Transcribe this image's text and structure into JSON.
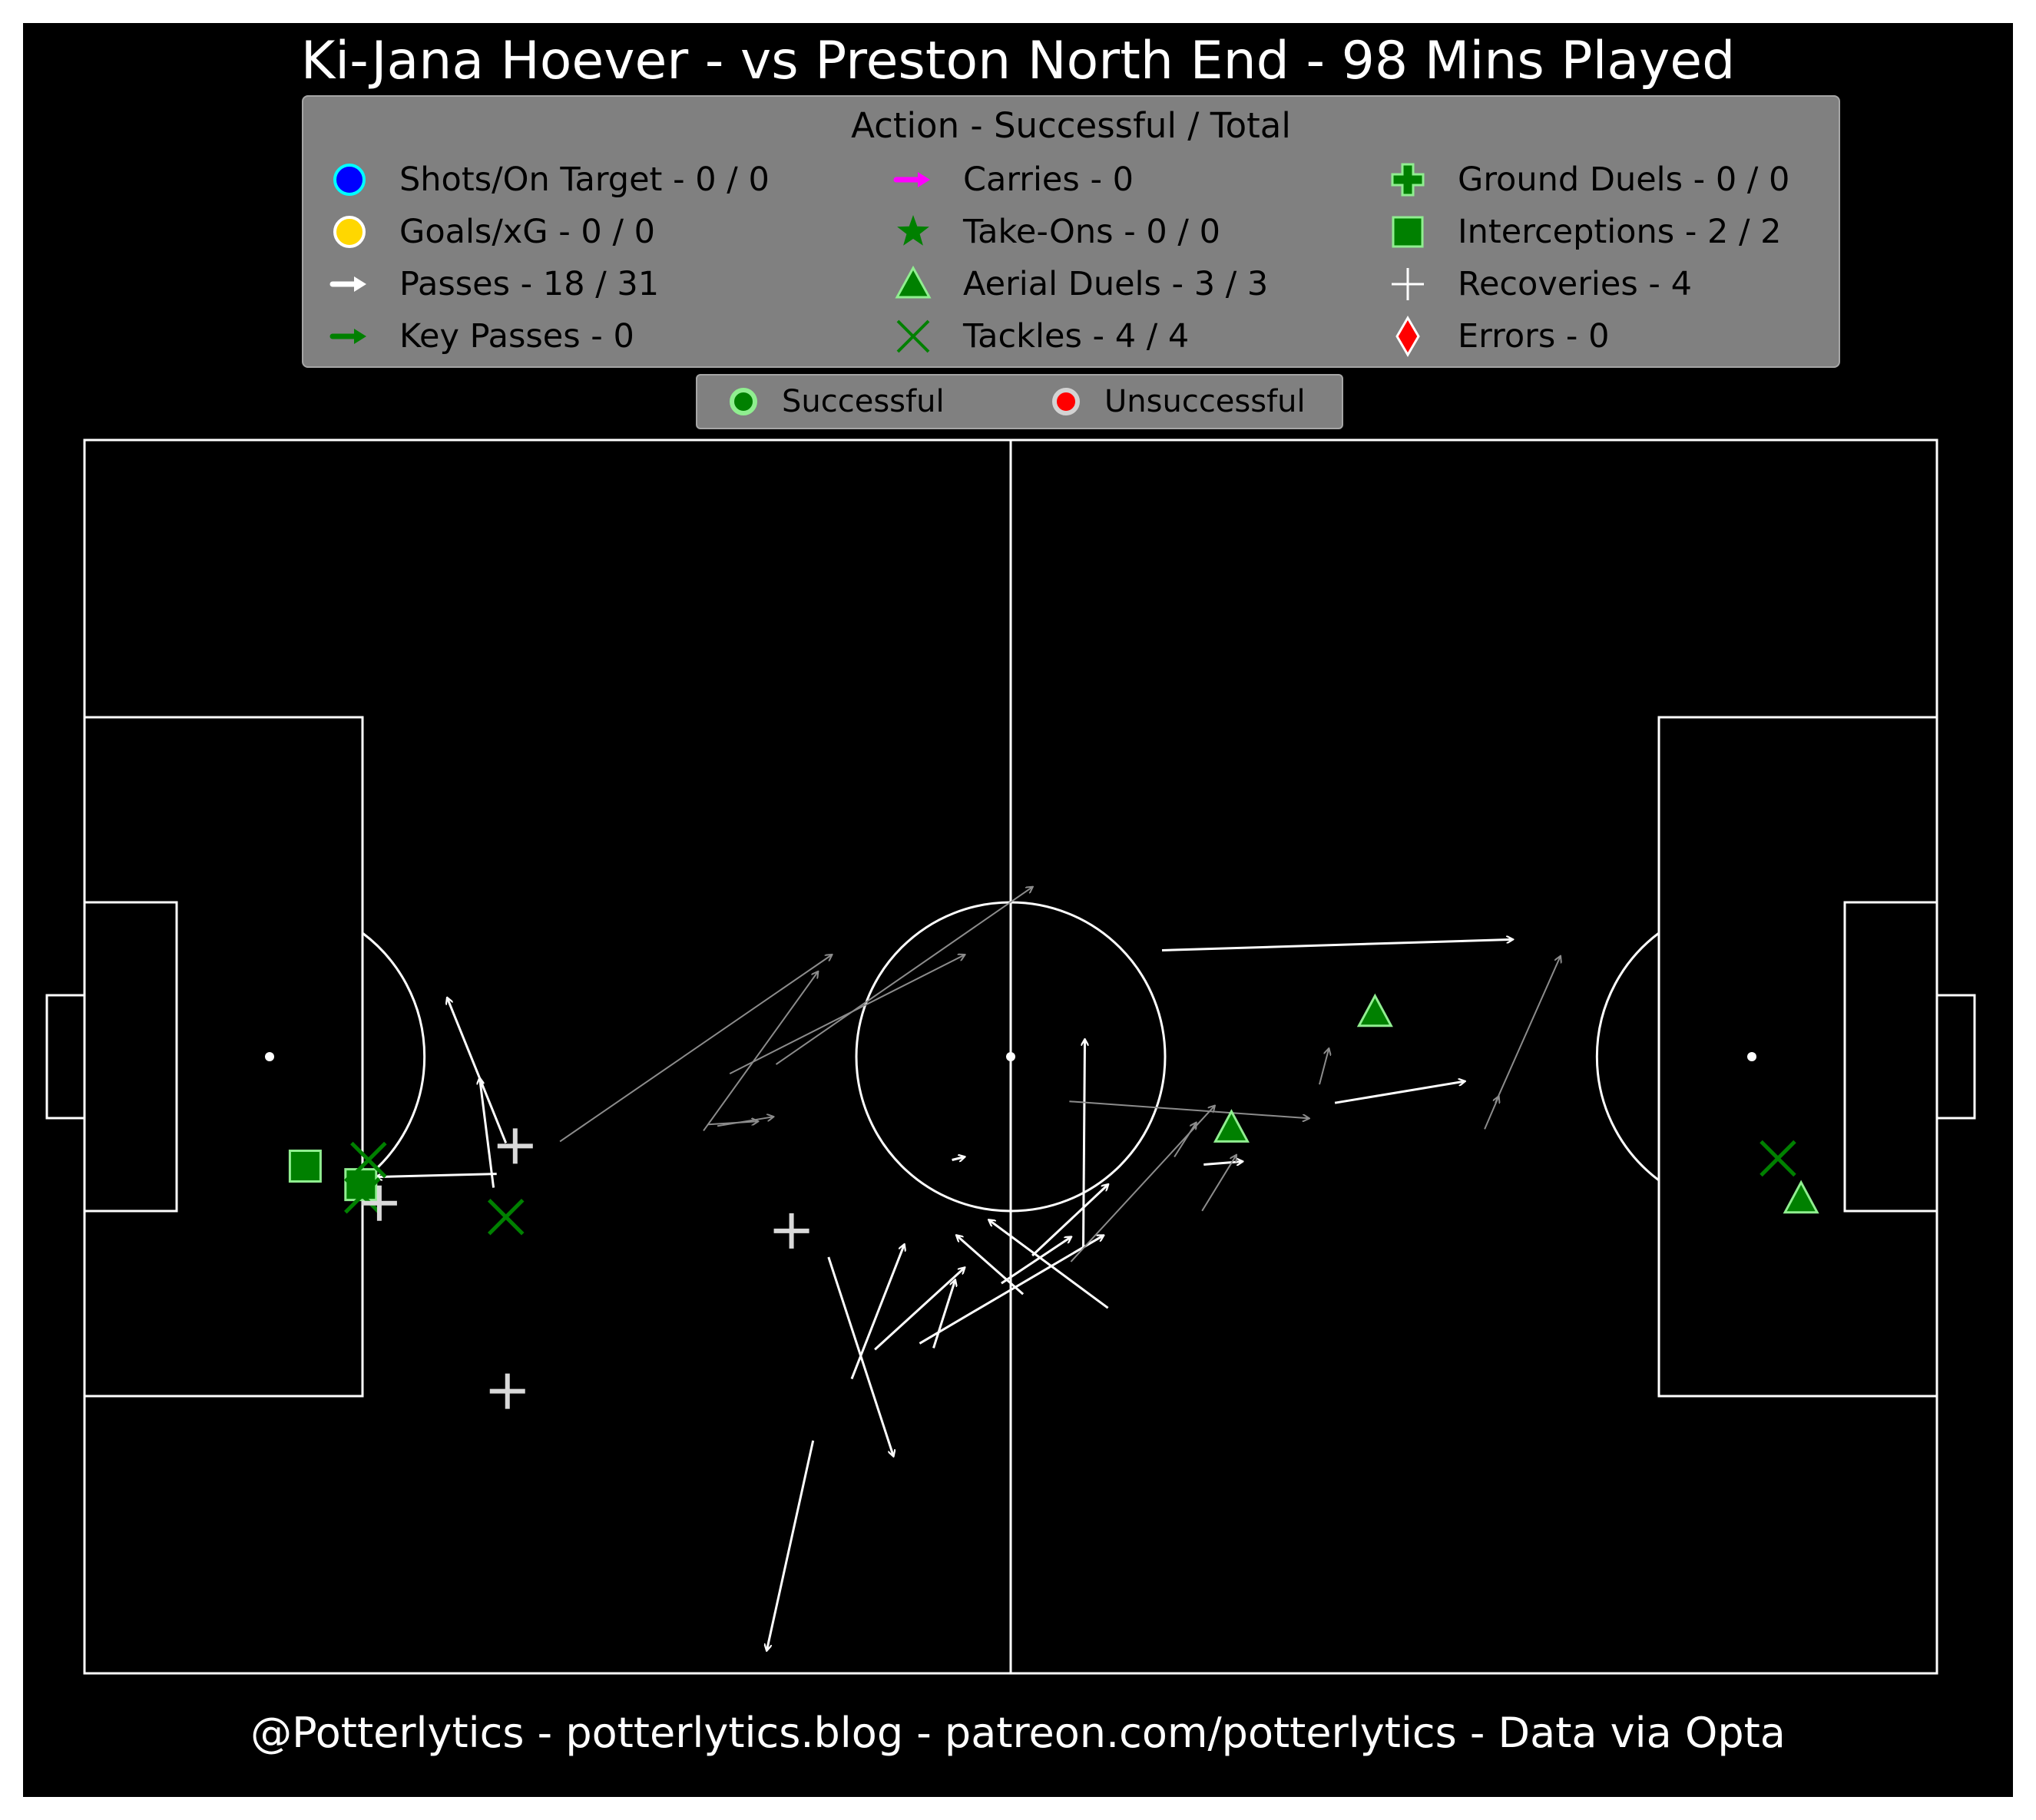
{
  "title": "Ki-Jana Hoever - vs Preston North End - 98 Mins Played",
  "footer": "@Potterlytics - potterlytics.blog - patreon.com/potterlytics - Data via Opta",
  "legend": {
    "title": "Action - Successful / Total",
    "items": [
      {
        "label": "Shots/On Target - 0 / 0",
        "icon": "circle",
        "color": "#0000ff",
        "edge": "#00ffff"
      },
      {
        "label": "Goals/xG - 0 / 0",
        "icon": "circle",
        "color": "#ffd700",
        "edge": "#ffffff"
      },
      {
        "label": "Passes - 18 / 31",
        "icon": "arrow",
        "color": "#ffffff"
      },
      {
        "label": "Key Passes - 0",
        "icon": "arrow",
        "color": "#008000"
      },
      {
        "label": "Carries - 0",
        "icon": "arrow",
        "color": "#ff00ff"
      },
      {
        "label": "Take-Ons - 0 / 0",
        "icon": "star",
        "color": "#008000"
      },
      {
        "label": "Aerial Duels - 3 / 3",
        "icon": "triangle",
        "color": "#008000",
        "edge": "#90ee90"
      },
      {
        "label": "Tackles - 4 / 4",
        "icon": "x",
        "color": "#008000"
      },
      {
        "label": "Ground Duels - 0 / 0",
        "icon": "plus-filled",
        "color": "#008000",
        "edge": "#90ee90"
      },
      {
        "label": "Interceptions - 2 / 2",
        "icon": "square",
        "color": "#008000",
        "edge": "#90ee90"
      },
      {
        "label": "Recoveries - 4",
        "icon": "plus",
        "color": "#ffffff"
      },
      {
        "label": "Errors - 0",
        "icon": "diamond",
        "color": "#ff0000",
        "edge": "#ffffff"
      }
    ]
  },
  "status_legend": [
    {
      "label": "Successful",
      "color": "#008000",
      "edge": "#90ee90"
    },
    {
      "label": "Unsuccessful",
      "color": "#ff0000",
      "edge": "#d3d3d3"
    }
  ],
  "colors": {
    "background": "#000000",
    "pitch_lines": "#ffffff",
    "pass_success": "#ffffff",
    "pass_fail": "#8c8c8c",
    "marker_fill": "#008000",
    "marker_edge": "#90ee90",
    "recovery": "#d9d9d9"
  },
  "chart_data": {
    "type": "scatter",
    "pitch": {
      "length": 120,
      "width": 80,
      "orientation": "attacking-right"
    },
    "passes": [
      {
        "x": 47.2,
        "y": 15.1,
        "end_x": 44.2,
        "end_y": 1.5,
        "outcome": "successful"
      },
      {
        "x": 48.2,
        "y": 27.0,
        "end_x": 52.4,
        "end_y": 14.1,
        "outcome": "successful"
      },
      {
        "x": 64.7,
        "y": 27.6,
        "end_x": 64.8,
        "end_y": 41.1,
        "outcome": "successful"
      },
      {
        "x": 69.8,
        "y": 46.9,
        "end_x": 92.5,
        "end_y": 47.6,
        "outcome": "successful"
      },
      {
        "x": 81.0,
        "y": 37.0,
        "end_x": 89.4,
        "end_y": 38.4,
        "outcome": "successful"
      },
      {
        "x": 51.2,
        "y": 21.0,
        "end_x": 57.0,
        "end_y": 26.3,
        "outcome": "successful"
      },
      {
        "x": 54.1,
        "y": 21.4,
        "end_x": 66.0,
        "end_y": 28.4,
        "outcome": "successful"
      },
      {
        "x": 49.7,
        "y": 19.1,
        "end_x": 53.1,
        "end_y": 27.8,
        "outcome": "successful"
      },
      {
        "x": 59.4,
        "y": 25.3,
        "end_x": 63.9,
        "end_y": 28.3,
        "outcome": "successful"
      },
      {
        "x": 55.0,
        "y": 21.1,
        "end_x": 56.4,
        "end_y": 25.5,
        "outcome": "successful"
      },
      {
        "x": 61.4,
        "y": 27.1,
        "end_x": 66.3,
        "end_y": 31.7,
        "outcome": "successful"
      },
      {
        "x": 72.5,
        "y": 33.0,
        "end_x": 75.0,
        "end_y": 33.2,
        "outcome": "successful"
      },
      {
        "x": 60.8,
        "y": 24.6,
        "end_x": 56.5,
        "end_y": 28.4,
        "outcome": "successful"
      },
      {
        "x": 26.7,
        "y": 32.4,
        "end_x": 18.9,
        "end_y": 32.2,
        "outcome": "successful"
      },
      {
        "x": 26.5,
        "y": 31.5,
        "end_x": 25.6,
        "end_y": 38.6,
        "outcome": "successful"
      },
      {
        "x": 27.3,
        "y": 34.4,
        "end_x": 23.5,
        "end_y": 43.8,
        "outcome": "successful"
      },
      {
        "x": 56.2,
        "y": 33.3,
        "end_x": 57.0,
        "end_y": 33.5,
        "outcome": "successful"
      },
      {
        "x": 66.3,
        "y": 23.7,
        "end_x": 58.6,
        "end_y": 29.4,
        "outcome": "successful"
      },
      {
        "x": 40.4,
        "y": 35.6,
        "end_x": 43.6,
        "end_y": 35.8,
        "outcome": "unsuccessful"
      },
      {
        "x": 44.8,
        "y": 39.5,
        "end_x": 61.4,
        "end_y": 51.0,
        "outcome": "unsuccessful"
      },
      {
        "x": 40.1,
        "y": 35.2,
        "end_x": 47.5,
        "end_y": 45.5,
        "outcome": "unsuccessful"
      },
      {
        "x": 30.8,
        "y": 34.5,
        "end_x": 48.4,
        "end_y": 46.6,
        "outcome": "unsuccessful"
      },
      {
        "x": 41.0,
        "y": 35.5,
        "end_x": 44.6,
        "end_y": 36.1,
        "outcome": "unsuccessful"
      },
      {
        "x": 41.8,
        "y": 38.9,
        "end_x": 57.0,
        "end_y": 46.6,
        "outcome": "unsuccessful"
      },
      {
        "x": 72.4,
        "y": 30.0,
        "end_x": 74.6,
        "end_y": 33.6,
        "outcome": "unsuccessful"
      },
      {
        "x": 70.6,
        "y": 33.5,
        "end_x": 72.0,
        "end_y": 35.7,
        "outcome": "unsuccessful"
      },
      {
        "x": 63.8,
        "y": 37.1,
        "end_x": 79.3,
        "end_y": 36.0,
        "outcome": "unsuccessful"
      },
      {
        "x": 63.9,
        "y": 26.7,
        "end_x": 73.2,
        "end_y": 36.8,
        "outcome": "unsuccessful"
      },
      {
        "x": 80.0,
        "y": 38.2,
        "end_x": 80.6,
        "end_y": 40.5,
        "outcome": "unsuccessful"
      },
      {
        "x": 90.7,
        "y": 35.3,
        "end_x": 91.6,
        "end_y": 37.4,
        "outcome": "unsuccessful"
      },
      {
        "x": 91.4,
        "y": 37.0,
        "end_x": 95.6,
        "end_y": 46.5,
        "outcome": "unsuccessful"
      }
    ],
    "aerial_duels": [
      {
        "x": 111.2,
        "y": 30.8,
        "outcome": "successful"
      },
      {
        "x": 74.3,
        "y": 35.4,
        "outcome": "successful"
      },
      {
        "x": 83.6,
        "y": 42.9,
        "outcome": "successful"
      }
    ],
    "tackles": [
      {
        "x": 18.4,
        "y": 33.3,
        "outcome": "successful"
      },
      {
        "x": 18.0,
        "y": 31.0,
        "outcome": "successful"
      },
      {
        "x": 27.3,
        "y": 29.6,
        "outcome": "successful"
      },
      {
        "x": 109.7,
        "y": 33.4,
        "outcome": "successful"
      }
    ],
    "interceptions": [
      {
        "x": 17.9,
        "y": 31.7,
        "outcome": "successful"
      },
      {
        "x": 14.3,
        "y": 32.9,
        "outcome": "successful"
      }
    ],
    "recoveries": [
      {
        "x": 27.4,
        "y": 18.3
      },
      {
        "x": 19.1,
        "y": 30.5
      },
      {
        "x": 27.9,
        "y": 34.2
      },
      {
        "x": 45.8,
        "y": 28.7
      }
    ]
  }
}
